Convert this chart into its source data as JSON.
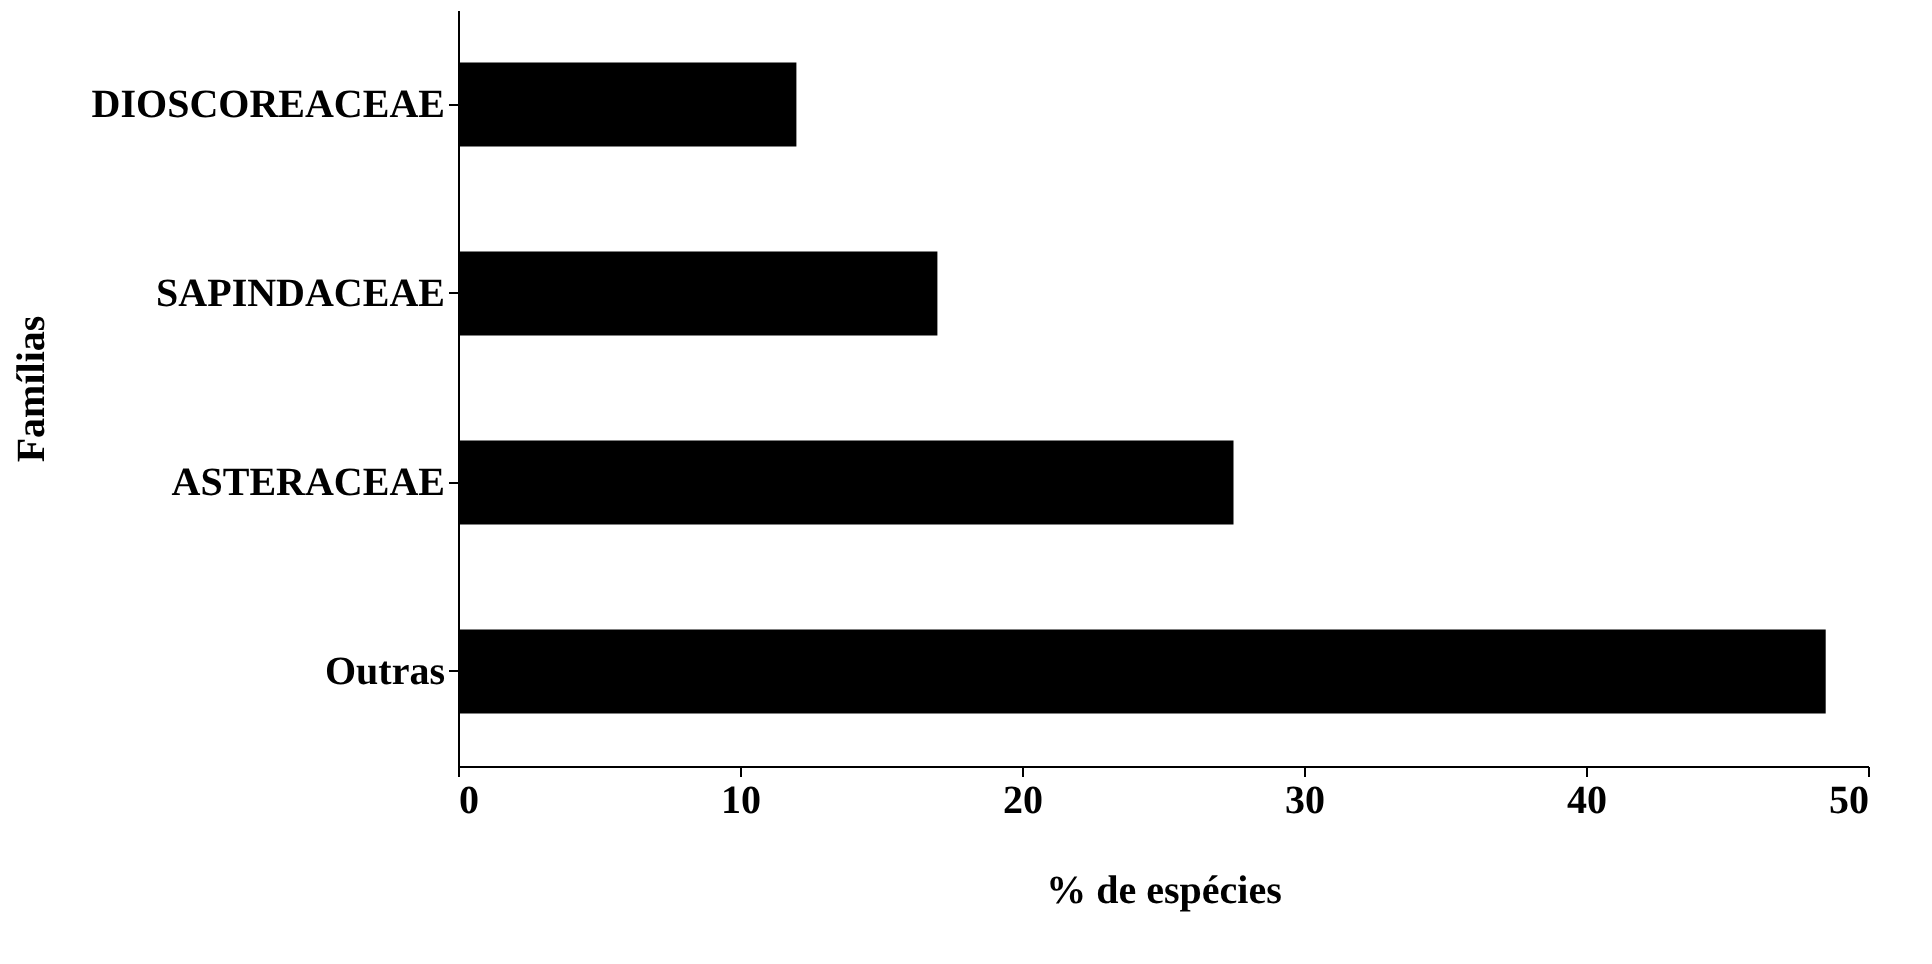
{
  "chart_data": {
    "type": "bar",
    "orientation": "horizontal",
    "xlabel": "% de espécies",
    "ylabel": "Famílias",
    "categories": [
      "DIOSCOREACEAE",
      "SAPINDACEAE",
      "ASTERACEAE",
      "Outras"
    ],
    "values": [
      12,
      17,
      27.5,
      48.5
    ],
    "color": "#000000",
    "xlim": [
      0,
      50
    ],
    "xticks": [
      0,
      10,
      20,
      30,
      40,
      50
    ],
    "grid": false
  }
}
